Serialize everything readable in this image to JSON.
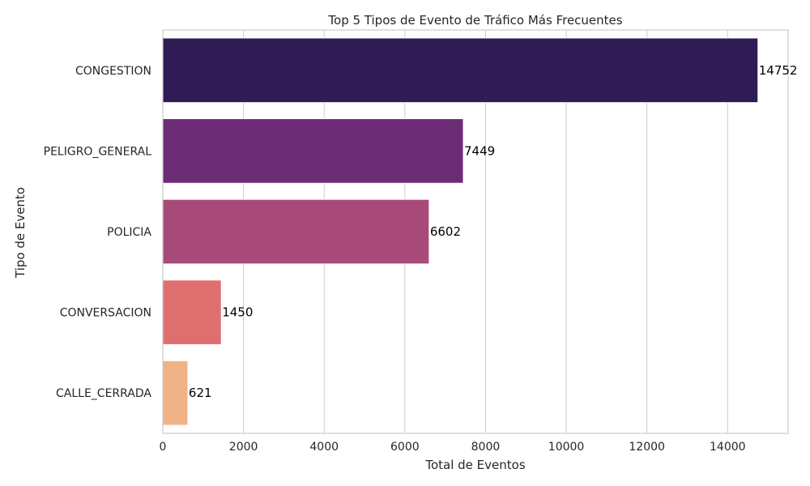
{
  "chart_data": {
    "type": "bar",
    "orientation": "horizontal",
    "title": "Top 5 Tipos de Evento de Tráfico Más Frecuentes",
    "xlabel": "Total de Eventos",
    "ylabel": "Tipo de Evento",
    "categories": [
      "CONGESTION",
      "PELIGRO_GENERAL",
      "POLICIA",
      "CONVERSACION",
      "CALLE_CERRADA"
    ],
    "values": [
      14752,
      7449,
      6602,
      1450,
      621
    ],
    "data_labels": [
      "14752",
      "7449",
      "6602",
      "1450",
      "621"
    ],
    "colors": [
      "#2f1c55",
      "#6b2c75",
      "#a74a79",
      "#df6f6f",
      "#f0b287"
    ],
    "xlim": [
      0,
      15500
    ],
    "xticks": [
      0,
      2000,
      4000,
      6000,
      8000,
      10000,
      12000,
      14000
    ],
    "xtick_labels": [
      "0",
      "2000",
      "4000",
      "6000",
      "8000",
      "10000",
      "12000",
      "14000"
    ],
    "grid": "x",
    "legend": "none"
  }
}
